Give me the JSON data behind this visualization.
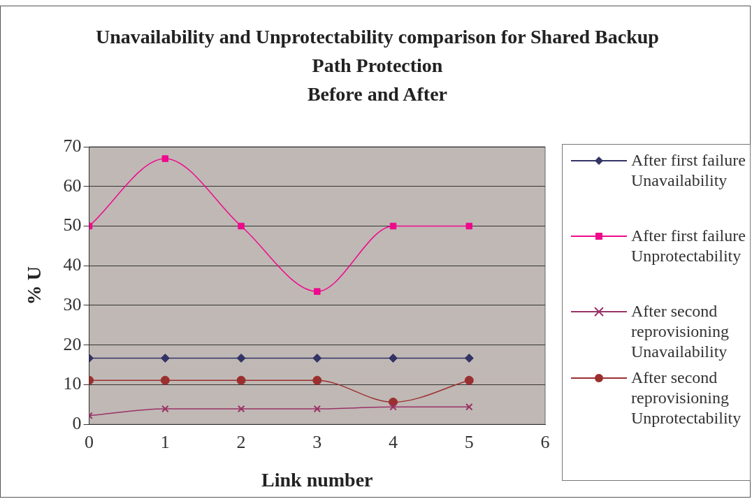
{
  "chart_data": {
    "type": "line",
    "title": "Unavailability and Unprotectability comparison for Shared Backup Path Protection",
    "subtitle": "Before and After",
    "xlabel": "Link number",
    "ylabel": "% U",
    "x": [
      0,
      1,
      2,
      3,
      4,
      5
    ],
    "xlim": [
      0,
      6
    ],
    "xticks": [
      0,
      1,
      2,
      3,
      4,
      5,
      6
    ],
    "ylim": [
      0,
      70
    ],
    "yticks": [
      0,
      10,
      20,
      30,
      40,
      50,
      60,
      70
    ],
    "grid": "y",
    "legend": "right",
    "series": [
      {
        "name": "After first failure Unavailability",
        "color": "#333366",
        "marker": "diamond",
        "values": [
          16.7,
          16.7,
          16.7,
          16.7,
          16.7,
          16.7
        ]
      },
      {
        "name": "After first failure Unprotectability",
        "color": "#ee0a8c",
        "marker": "square",
        "values": [
          50,
          67,
          50,
          33.5,
          50,
          50
        ]
      },
      {
        "name": "After second reprovisioning Unavailability",
        "color": "#993366",
        "marker": "cross",
        "values": [
          2.2,
          3.9,
          3.9,
          3.9,
          4.4,
          4.4
        ]
      },
      {
        "name": "After second reprovisioning Unprotectability",
        "color": "#9b2f2f",
        "marker": "circle",
        "values": [
          11.1,
          11.1,
          11.1,
          11.1,
          5.6,
          11.1
        ]
      }
    ]
  }
}
